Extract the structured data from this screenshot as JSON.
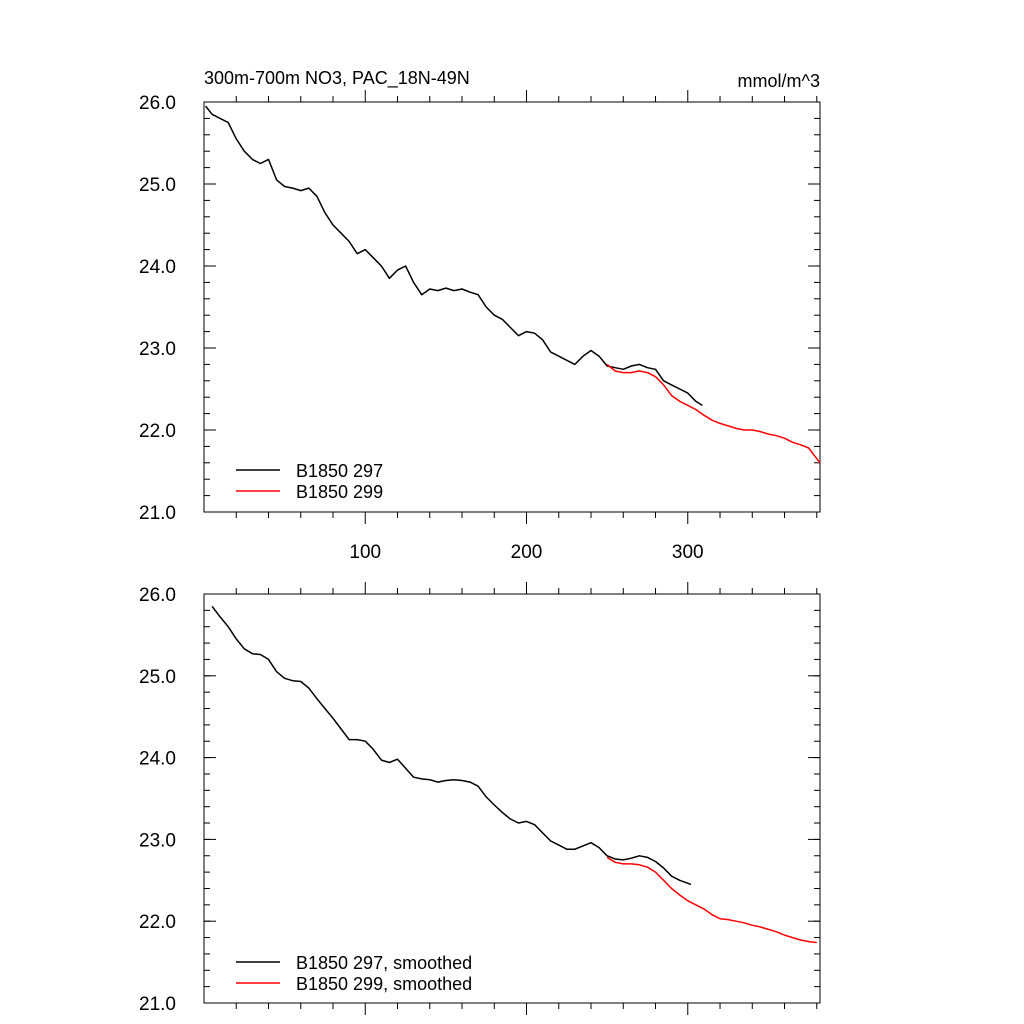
{
  "header": {
    "title": "300m-700m NO3, PAC_18N-49N",
    "units": "mmol/m^3"
  },
  "colors": {
    "series_1": "#000000",
    "series_2": "#ff0000",
    "axis": "#000000"
  },
  "chart_data": [
    {
      "type": "line",
      "title": "300m-700m NO3, PAC_18N-49N",
      "units": "mmol/m^3",
      "xlabel": "",
      "ylabel": "",
      "xlim": [
        0,
        382
      ],
      "ylim": [
        21.0,
        26.0
      ],
      "x_ticks": [
        100,
        200,
        300
      ],
      "x_tick_labels": [
        "100",
        "200",
        "300"
      ],
      "y_ticks": [
        21.0,
        22.0,
        23.0,
        24.0,
        25.0,
        26.0
      ],
      "y_tick_labels": [
        "21.0",
        "22.0",
        "23.0",
        "24.0",
        "25.0",
        "26.0"
      ],
      "grid": false,
      "legend_position": "bottom-left",
      "series": [
        {
          "name": "B1850 297",
          "color": "#000000",
          "x": [
            1,
            5,
            10,
            15,
            20,
            25,
            30,
            35,
            40,
            45,
            50,
            55,
            60,
            65,
            70,
            75,
            80,
            85,
            90,
            95,
            100,
            105,
            110,
            115,
            120,
            125,
            130,
            135,
            140,
            145,
            150,
            155,
            160,
            165,
            170,
            175,
            180,
            185,
            190,
            195,
            200,
            205,
            210,
            215,
            220,
            225,
            230,
            235,
            240,
            245,
            250,
            255,
            260,
            265,
            270,
            275,
            280,
            285,
            290,
            295,
            300,
            305,
            309
          ],
          "y": [
            25.95,
            25.85,
            25.8,
            25.75,
            25.55,
            25.4,
            25.3,
            25.25,
            25.3,
            25.05,
            24.97,
            24.95,
            24.92,
            24.95,
            24.85,
            24.65,
            24.5,
            24.4,
            24.3,
            24.15,
            24.2,
            24.1,
            24.0,
            23.85,
            23.95,
            24.0,
            23.8,
            23.65,
            23.72,
            23.7,
            23.73,
            23.7,
            23.72,
            23.68,
            23.65,
            23.5,
            23.4,
            23.35,
            23.25,
            23.15,
            23.2,
            23.18,
            23.1,
            22.95,
            22.9,
            22.85,
            22.8,
            22.9,
            22.97,
            22.9,
            22.78,
            22.76,
            22.74,
            22.78,
            22.8,
            22.76,
            22.74,
            22.6,
            22.55,
            22.5,
            22.45,
            22.35,
            22.3
          ]
        },
        {
          "name": "B1850 299",
          "color": "#ff0000",
          "x": [
            250,
            255,
            260,
            265,
            270,
            275,
            280,
            285,
            290,
            295,
            300,
            305,
            310,
            315,
            320,
            325,
            330,
            335,
            340,
            345,
            350,
            355,
            360,
            365,
            370,
            375,
            380,
            382
          ],
          "y": [
            22.8,
            22.72,
            22.7,
            22.7,
            22.72,
            22.7,
            22.65,
            22.55,
            22.42,
            22.35,
            22.3,
            22.25,
            22.18,
            22.12,
            22.08,
            22.05,
            22.02,
            22.0,
            22.0,
            21.98,
            21.95,
            21.93,
            21.9,
            21.85,
            21.82,
            21.78,
            21.65,
            21.6
          ]
        }
      ]
    },
    {
      "type": "line",
      "title": "",
      "xlabel": "",
      "ylabel": "",
      "xlim": [
        0,
        382
      ],
      "ylim": [
        21.0,
        26.0
      ],
      "x_ticks": [
        100,
        200,
        300
      ],
      "x_tick_labels": [],
      "y_ticks": [
        21.0,
        22.0,
        23.0,
        24.0,
        25.0,
        26.0
      ],
      "y_tick_labels": [
        "21.0",
        "22.0",
        "23.0",
        "24.0",
        "25.0",
        "26.0"
      ],
      "grid": false,
      "legend_position": "bottom-left",
      "series": [
        {
          "name": "B1850 297, smoothed",
          "color": "#000000",
          "x": [
            5,
            10,
            15,
            20,
            25,
            30,
            35,
            40,
            45,
            50,
            55,
            60,
            65,
            70,
            75,
            80,
            85,
            90,
            95,
            100,
            105,
            110,
            115,
            120,
            125,
            130,
            135,
            140,
            145,
            150,
            155,
            160,
            165,
            170,
            175,
            180,
            185,
            190,
            195,
            200,
            205,
            210,
            215,
            220,
            225,
            230,
            235,
            240,
            245,
            250,
            255,
            260,
            265,
            270,
            275,
            280,
            285,
            290,
            295,
            302
          ],
          "y": [
            25.85,
            25.72,
            25.6,
            25.45,
            25.33,
            25.27,
            25.26,
            25.2,
            25.05,
            24.97,
            24.94,
            24.93,
            24.85,
            24.72,
            24.6,
            24.48,
            24.35,
            24.22,
            24.22,
            24.2,
            24.1,
            23.97,
            23.94,
            23.98,
            23.87,
            23.76,
            23.74,
            23.73,
            23.7,
            23.72,
            23.73,
            23.72,
            23.7,
            23.65,
            23.52,
            23.42,
            23.33,
            23.25,
            23.2,
            23.22,
            23.18,
            23.08,
            22.98,
            22.93,
            22.88,
            22.88,
            22.92,
            22.96,
            22.9,
            22.8,
            22.76,
            22.75,
            22.77,
            22.8,
            22.78,
            22.73,
            22.65,
            22.55,
            22.5,
            22.45
          ]
        },
        {
          "name": "B1850 299, smoothed",
          "color": "#ff0000",
          "x": [
            250,
            255,
            260,
            265,
            270,
            275,
            280,
            285,
            290,
            295,
            300,
            305,
            310,
            315,
            320,
            325,
            330,
            335,
            340,
            345,
            350,
            355,
            360,
            365,
            370,
            375,
            380
          ],
          "y": [
            22.78,
            22.72,
            22.7,
            22.7,
            22.69,
            22.66,
            22.6,
            22.5,
            22.4,
            22.32,
            22.25,
            22.2,
            22.15,
            22.08,
            22.03,
            22.02,
            22.0,
            21.98,
            21.95,
            21.93,
            21.9,
            21.87,
            21.83,
            21.8,
            21.77,
            21.75,
            21.74
          ]
        }
      ]
    }
  ]
}
